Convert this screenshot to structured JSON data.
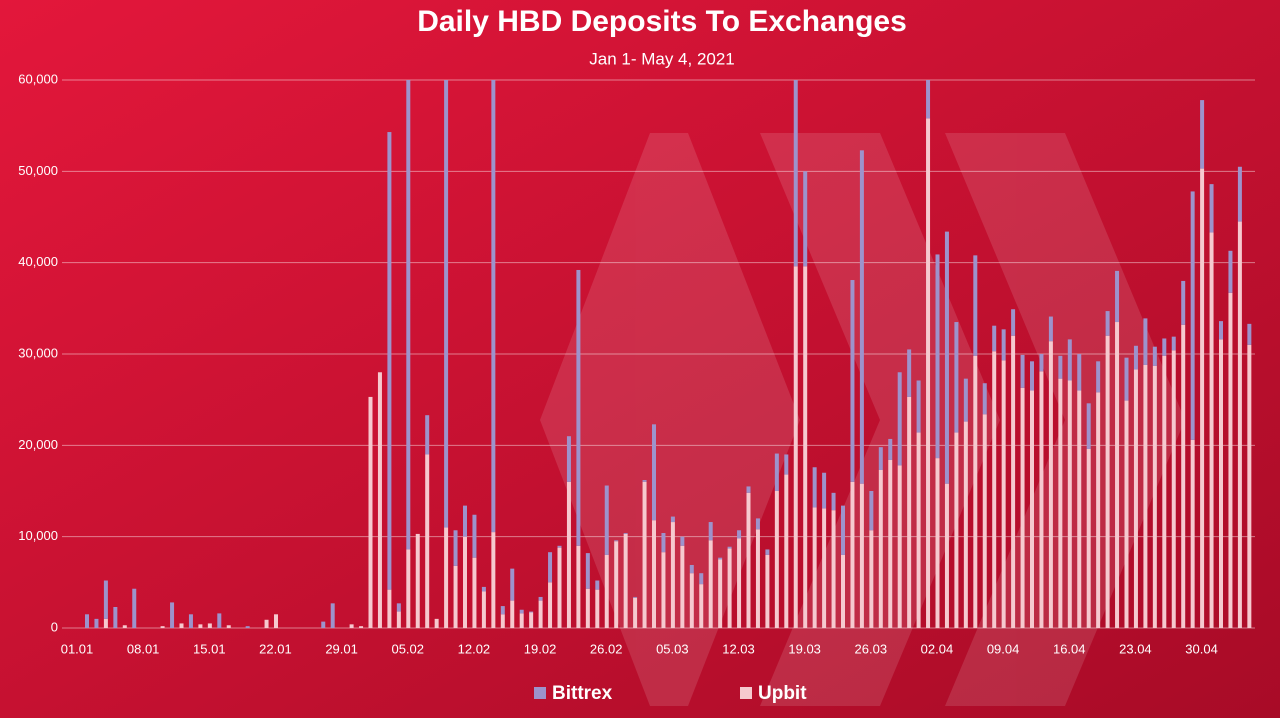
{
  "chart_data": {
    "type": "stacked_bar",
    "title": "Daily HBD Deposits To Exchanges",
    "subtitle": "Jan 1- May 4, 2021",
    "categories": [
      "01.01",
      null,
      null,
      null,
      null,
      null,
      null,
      "08.01",
      null,
      null,
      null,
      null,
      null,
      null,
      "15.01",
      null,
      null,
      null,
      null,
      null,
      null,
      "22.01",
      null,
      null,
      null,
      null,
      null,
      null,
      "29.01",
      null,
      null,
      null,
      null,
      null,
      null,
      "05.02",
      null,
      null,
      null,
      null,
      null,
      null,
      "12.02",
      null,
      null,
      null,
      null,
      null,
      null,
      "19.02",
      null,
      null,
      null,
      null,
      null,
      null,
      "26.02",
      null,
      null,
      null,
      null,
      null,
      null,
      "05.03",
      null,
      null,
      null,
      null,
      null,
      null,
      "12.03",
      null,
      null,
      null,
      null,
      null,
      null,
      "19.03",
      null,
      null,
      null,
      null,
      null,
      null,
      "26.03",
      null,
      null,
      null,
      null,
      null,
      null,
      "02.04",
      null,
      null,
      null,
      null,
      null,
      null,
      "09.04",
      null,
      null,
      null,
      null,
      null,
      null,
      "16.04",
      null,
      null,
      null,
      null,
      null,
      null,
      "23.04",
      null,
      null,
      null,
      null,
      null,
      null,
      "30.04",
      null,
      null,
      null,
      null
    ],
    "series": [
      {
        "name": "Bittrex",
        "color": "#9d93cc",
        "values": [
          1500,
          1000,
          4200,
          2300,
          0,
          4300,
          0,
          0,
          0,
          2800,
          0,
          1500,
          0,
          0,
          1600,
          0,
          0,
          200,
          0,
          0,
          0,
          0,
          0,
          0,
          0,
          700,
          2700,
          0,
          0,
          0,
          0,
          0,
          50100,
          900,
          51400,
          0,
          4300,
          0,
          49000,
          3900,
          3400,
          4700,
          500,
          49500,
          900,
          3500,
          400,
          100,
          400,
          3300,
          200,
          5000,
          30200,
          3900,
          1000,
          7600,
          100,
          100,
          100,
          200,
          10500,
          2100,
          600,
          1000,
          900,
          1200,
          2000,
          200,
          200,
          900,
          700,
          1200,
          600,
          4100,
          2200,
          20400,
          10400,
          4400,
          3900,
          1900,
          5400,
          22100,
          36500,
          4300,
          2500,
          2300,
          10200,
          5200,
          5700,
          4200,
          22300,
          27600,
          12100,
          4700,
          11000,
          3400,
          2800,
          3400,
          2900,
          3600,
          3200,
          1900,
          2700,
          2500,
          4500,
          4000,
          5000,
          3400,
          2700,
          5600,
          4700,
          2600,
          5100,
          2100,
          1900,
          1500,
          4800,
          27200,
          7500,
          5300,
          2000,
          4600,
          6000,
          2300
        ]
      },
      {
        "name": "Upbit",
        "color": "#f6c9cf",
        "values": [
          0,
          0,
          1000,
          0,
          300,
          0,
          0,
          0,
          200,
          0,
          500,
          0,
          400,
          500,
          0,
          300,
          0,
          0,
          0,
          900,
          1500,
          0,
          0,
          0,
          0,
          0,
          0,
          0,
          400,
          200,
          25300,
          28000,
          4200,
          1800,
          8600,
          10300,
          19000,
          1000,
          11000,
          6800,
          10000,
          7700,
          4000,
          10500,
          1500,
          3000,
          1600,
          1700,
          3000,
          5000,
          8800,
          16000,
          9000,
          4300,
          4200,
          8000,
          9500,
          10300,
          3300,
          16000,
          11800,
          8300,
          11600,
          9000,
          6000,
          4800,
          9600,
          7500,
          8700,
          9800,
          14800,
          10800,
          8000,
          15000,
          16800,
          39600,
          39600,
          13200,
          13100,
          12900,
          8000,
          16000,
          15800,
          10700,
          17300,
          18400,
          17800,
          25300,
          21400,
          55800,
          18600,
          15800,
          21400,
          22600,
          29800,
          23400,
          30300,
          29300,
          32000,
          26300,
          26000,
          28100,
          31400,
          27300,
          27100,
          26000,
          19600,
          25800,
          32000,
          33500,
          24900,
          28300,
          28800,
          28700,
          29800,
          30400,
          33200,
          20600,
          50300,
          43300,
          31600,
          36700,
          44500,
          31000
        ]
      }
    ],
    "ylim": [
      0,
      60000
    ],
    "yticks": [
      0,
      {
        "value": 10000,
        "label": "10,000"
      },
      {
        "value": 20000,
        "label": "20,000"
      },
      {
        "value": 30000,
        "label": "30,000"
      },
      {
        "value": 40000,
        "label": "40,000"
      },
      {
        "value": 50000,
        "label": "50,000"
      },
      {
        "value": 60000,
        "label": "60,000"
      }
    ],
    "grid": true
  }
}
